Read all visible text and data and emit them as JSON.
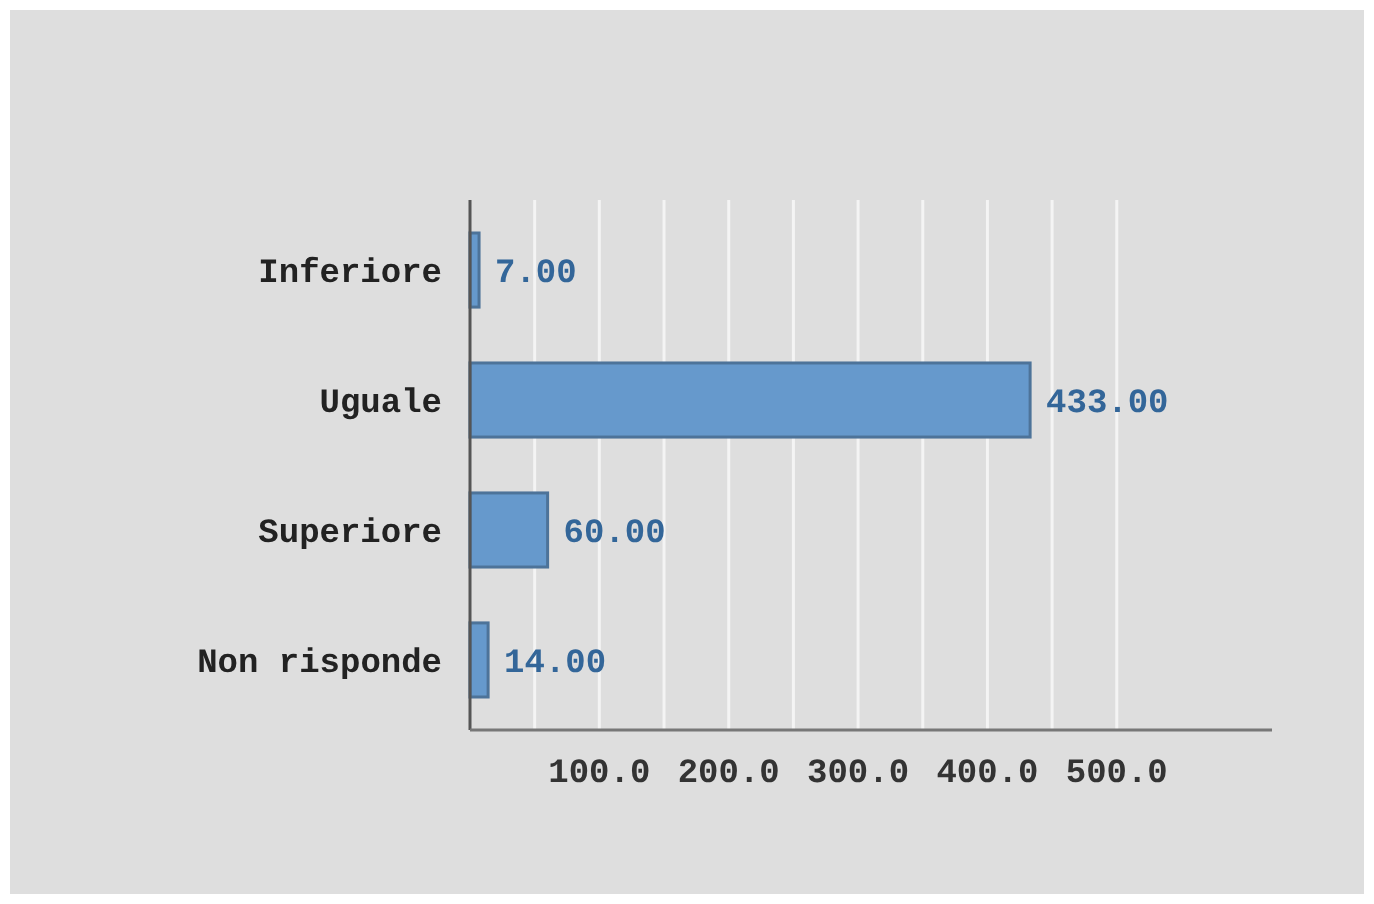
{
  "chart_data": {
    "type": "bar",
    "orientation": "horizontal",
    "categories": [
      "Inferiore",
      "Uguale",
      "Superiore",
      "Non risponde"
    ],
    "values": [
      7,
      433,
      60,
      14
    ],
    "color": "#6699cc",
    "value_labels": [
      "7.00",
      "433.00",
      "60.00",
      "14.00"
    ],
    "xlim": [
      0,
      620
    ],
    "xticks": [
      {
        "value": 50,
        "label": null
      },
      {
        "value": 100,
        "label": "100.0"
      },
      {
        "value": 150,
        "label": null
      },
      {
        "value": 200,
        "label": "200.0"
      },
      {
        "value": 250,
        "label": null
      },
      {
        "value": 300,
        "label": "300.0"
      },
      {
        "value": 350,
        "label": null
      },
      {
        "value": 400,
        "label": "400.0"
      },
      {
        "value": 450,
        "label": null
      },
      {
        "value": 500,
        "label": "500.0"
      }
    ],
    "grid": "x"
  }
}
